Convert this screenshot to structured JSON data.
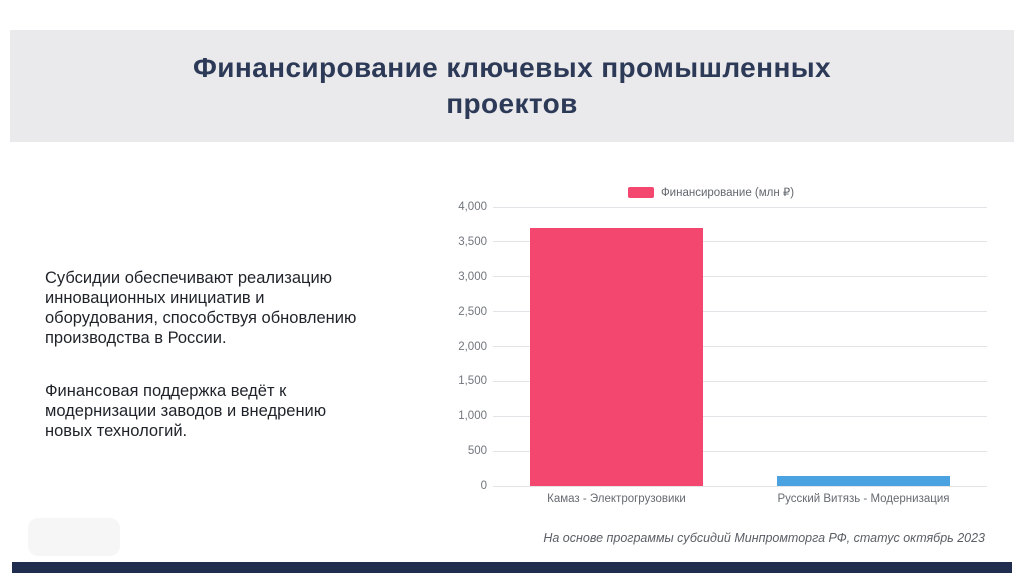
{
  "slide": {
    "title": "Финансирование ключевых промышленных\nпроектов",
    "body_paragraphs": [
      "Субсидии обеспечивают реализацию\nинновационных инициатив и\nоборудования, способствуя обновлению\nпроизводства в России.",
      "Финансовая поддержка ведёт к\nмодернизации заводов и внедрению\nновых технологий."
    ],
    "caption": "На основе программы субсидий Минпромторга РФ, статус октябрь 2023"
  },
  "chart_data": {
    "type": "bar",
    "title": "",
    "legend": [
      {
        "label": "Финансирование (млн ₽)",
        "color": "#f4476f"
      }
    ],
    "legend_position": "top",
    "categories": [
      "Камаз - Электрогрузовики",
      "Русский Витязь - Модернизация"
    ],
    "values": [
      3700,
      140
    ],
    "bar_colors": [
      "#f4476f",
      "#4aa3e0"
    ],
    "ylim": [
      0,
      4000
    ],
    "yticks": [
      0,
      500,
      1000,
      1500,
      2000,
      2500,
      3000,
      3500,
      4000
    ],
    "ytick_labels": [
      "0",
      "500",
      "1,000",
      "1,500",
      "2,000",
      "2,500",
      "3,000",
      "3,500",
      "4,000"
    ],
    "xlabel": "",
    "ylabel": "",
    "grid": true
  },
  "colors": {
    "header_bg": "#eaeaec",
    "title_text": "#2d3a57",
    "footer_bar": "#212d4f",
    "grid_line": "#e4e4e8",
    "axis_text": "#71757d",
    "bar_pink": "#f4476f",
    "bar_blue": "#4aa3e0"
  }
}
